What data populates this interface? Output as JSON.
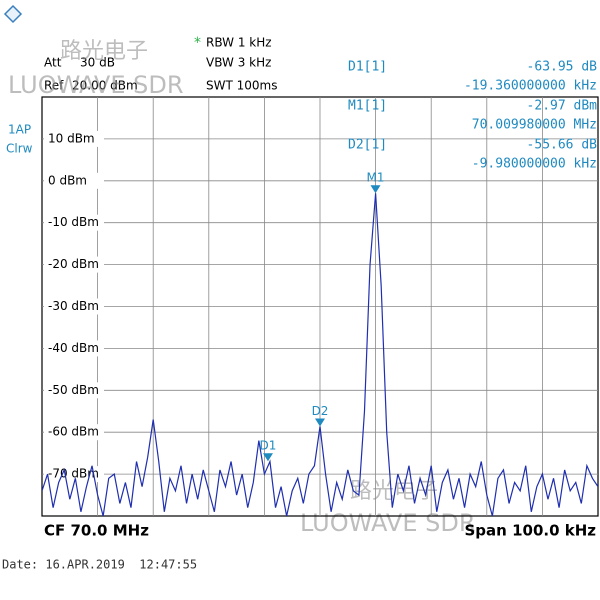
{
  "header": {
    "att": "Att",
    "att_value": "30 dB",
    "ref": "Ref",
    "ref_value": "20.00 dBm",
    "rbw_flag": "*",
    "rbw": "RBW 1 kHz",
    "vbw": "VBW 3 kHz",
    "swt": "SWT 100ms",
    "trace": "1AP",
    "mode": "Clrw"
  },
  "footer": {
    "cf": "CF 70.0 MHz",
    "span": "Span 100.0 kHz",
    "date": "Date: 16.APR.2019  12:47:55"
  },
  "watermark": {
    "cn": "路光电子",
    "en": "LUOWAVE SDR"
  },
  "chart_data": {
    "type": "line",
    "xlim": [
      69.95,
      70.05
    ],
    "ylim": [
      -80,
      20
    ],
    "yticks": [
      {
        "value": 10,
        "label": "10 dBm"
      },
      {
        "value": 0,
        "label": "0 dBm"
      },
      {
        "value": -10,
        "label": "-10 dBm"
      },
      {
        "value": -20,
        "label": "-20 dBm"
      },
      {
        "value": -30,
        "label": "-30 dBm"
      },
      {
        "value": -40,
        "label": "-40 dBm"
      },
      {
        "value": -50,
        "label": "-50 dBm"
      },
      {
        "value": -60,
        "label": "-60 dBm"
      },
      {
        "value": -70,
        "label": "-70 dBm"
      }
    ],
    "grid": true,
    "series": [
      {
        "color": "#1f2fb0",
        "x": [
          69.95,
          69.951,
          69.952,
          69.953,
          69.954,
          69.955,
          69.956,
          69.957,
          69.958,
          69.959,
          69.96,
          69.961,
          69.962,
          69.963,
          69.964,
          69.965,
          69.966,
          69.967,
          69.968,
          69.969,
          69.97,
          69.971,
          69.972,
          69.973,
          69.974,
          69.975,
          69.976,
          69.977,
          69.978,
          69.979,
          69.98,
          69.981,
          69.982,
          69.983,
          69.984,
          69.985,
          69.986,
          69.987,
          69.988,
          69.989,
          69.99,
          69.991,
          69.992,
          69.993,
          69.994,
          69.995,
          69.996,
          69.997,
          69.998,
          69.999,
          70.0,
          70.001,
          70.002,
          70.003,
          70.004,
          70.005,
          70.006,
          70.007,
          70.008,
          70.009,
          70.01,
          70.011,
          70.012,
          70.013,
          70.014,
          70.015,
          70.016,
          70.017,
          70.018,
          70.019,
          70.02,
          70.021,
          70.022,
          70.023,
          70.024,
          70.025,
          70.026,
          70.027,
          70.028,
          70.029,
          70.03,
          70.031,
          70.032,
          70.033,
          70.034,
          70.035,
          70.036,
          70.037,
          70.038,
          70.039,
          70.04,
          70.041,
          70.042,
          70.043,
          70.044,
          70.045,
          70.046,
          70.047,
          70.048,
          70.049,
          70.05
        ],
        "values": [
          -74,
          -70,
          -78,
          -72,
          -69,
          -76,
          -71,
          -79,
          -73,
          -68,
          -75,
          -80,
          -71,
          -70,
          -77,
          -72,
          -78,
          -67,
          -73,
          -66,
          -57,
          -67,
          -79,
          -71,
          -74,
          -68,
          -77,
          -70,
          -76,
          -69,
          -74,
          -79,
          -69,
          -73,
          -67,
          -75,
          -70,
          -78,
          -72,
          -62,
          -70,
          -67,
          -78,
          -73,
          -80,
          -74,
          -71,
          -77,
          -70,
          -68,
          -58.63,
          -70,
          -79,
          -72,
          -76,
          -69,
          -74,
          -75,
          -55,
          -20,
          -2.97,
          -25,
          -60,
          -78,
          -70,
          -74,
          -68,
          -77,
          -71,
          -75,
          -68,
          -79,
          -72,
          -69,
          -76,
          -71,
          -78,
          -70,
          -73,
          -67,
          -75,
          -80,
          -71,
          -69,
          -77,
          -72,
          -74,
          -68,
          -79,
          -73,
          -70,
          -76,
          -71,
          -78,
          -69,
          -74,
          -72,
          -77,
          -68,
          -71,
          -73
        ]
      }
    ],
    "markers": [
      {
        "label": "M1",
        "x": 70.00998,
        "y": -2.97
      },
      {
        "label": "D1",
        "x": 69.99064,
        "y": -66.92
      },
      {
        "label": "D2",
        "x": 70.0,
        "y": -58.63
      }
    ],
    "marker_readouts": [
      {
        "name": "D1[1]",
        "value": "-63.95 dB",
        "position": "-19.360000000 kHz"
      },
      {
        "name": "M1[1]",
        "value": "-2.97 dBm",
        "position": "70.009980000 MHz"
      },
      {
        "name": "D2[1]",
        "value": "-55.66 dB",
        "position": "-9.980000000 kHz"
      }
    ]
  }
}
